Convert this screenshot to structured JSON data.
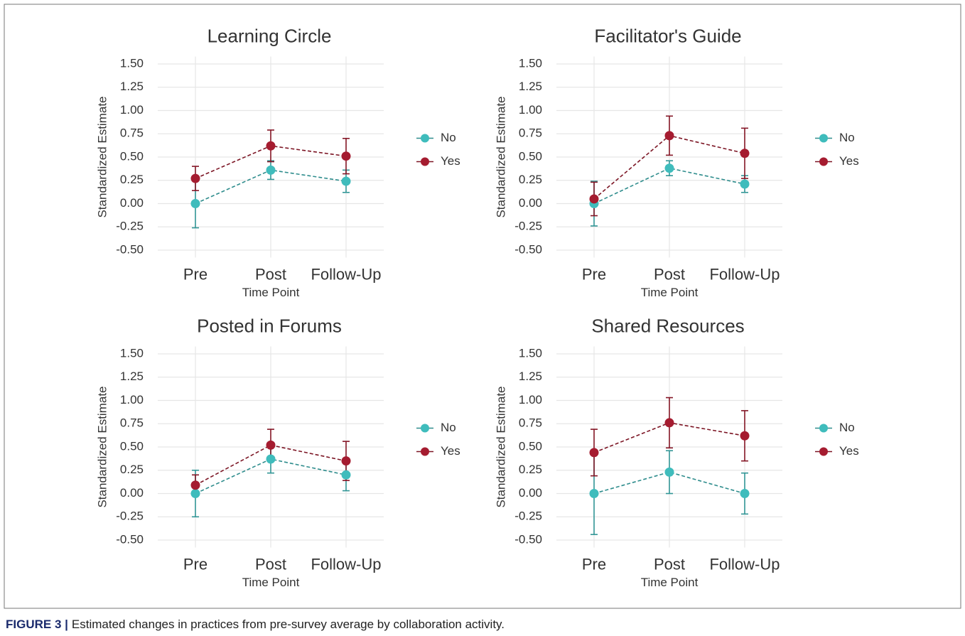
{
  "chart_data": [
    {
      "type": "line",
      "title": "Learning Circle",
      "x_label": "Time Point",
      "y_label": "Standardized Estimate",
      "categories": [
        "Pre",
        "Post",
        "Follow-Up"
      ],
      "series": [
        {
          "name": "No",
          "color": "#3fbcbc",
          "values": [
            0,
            0.36,
            0.24
          ],
          "errors": [
            0.26,
            0.1,
            0.12
          ]
        },
        {
          "name": "Yes",
          "color": "#a51c30",
          "values": [
            0.27,
            0.62,
            0.51
          ],
          "errors": [
            0.13,
            0.17,
            0.19
          ]
        }
      ],
      "ylim": [
        -0.58,
        1.58
      ],
      "yticks": [
        {
          "value": -0.5,
          "label": "-0.50"
        },
        {
          "value": -0.25,
          "label": "-0.25"
        },
        {
          "value": 0,
          "label": "0.00"
        },
        {
          "value": 0.25,
          "label": "0.25"
        },
        {
          "value": 0.5,
          "label": "0.50"
        },
        {
          "value": 0.75,
          "label": "0.75"
        },
        {
          "value": 1,
          "label": "1.00"
        },
        {
          "value": 1.25,
          "label": "1.25"
        },
        {
          "value": 1.5,
          "label": "1.50"
        }
      ],
      "grid": true,
      "legend": "right"
    },
    {
      "type": "line",
      "title": "Facilitator's Guide",
      "x_label": "Time Point",
      "y_label": "Standardized Estimate",
      "categories": [
        "Pre",
        "Post",
        "Follow-Up"
      ],
      "series": [
        {
          "name": "No",
          "color": "#3fbcbc",
          "values": [
            0,
            0.38,
            0.21
          ],
          "errors": [
            0.24,
            0.08,
            0.09
          ]
        },
        {
          "name": "Yes",
          "color": "#a51c30",
          "values": [
            0.05,
            0.73,
            0.54
          ],
          "errors": [
            0.18,
            0.21,
            0.27
          ]
        }
      ],
      "ylim": [
        -0.58,
        1.58
      ],
      "yticks": [
        {
          "value": -0.5,
          "label": "-0.50"
        },
        {
          "value": -0.25,
          "label": "-0.25"
        },
        {
          "value": 0,
          "label": "0.00"
        },
        {
          "value": 0.25,
          "label": "0.25"
        },
        {
          "value": 0.5,
          "label": "0.50"
        },
        {
          "value": 0.75,
          "label": "0.75"
        },
        {
          "value": 1,
          "label": "1.00"
        },
        {
          "value": 1.25,
          "label": "1.25"
        },
        {
          "value": 1.5,
          "label": "1.50"
        }
      ],
      "grid": true,
      "legend": "right"
    },
    {
      "type": "line",
      "title": "Posted in Forums",
      "x_label": "Time Point",
      "y_label": "Standardized Estimate",
      "categories": [
        "Pre",
        "Post",
        "Follow-Up"
      ],
      "series": [
        {
          "name": "No",
          "color": "#3fbcbc",
          "values": [
            0,
            0.37,
            0.2
          ],
          "errors": [
            0.25,
            0.15,
            0.17
          ]
        },
        {
          "name": "Yes",
          "color": "#a51c30",
          "values": [
            0.09,
            0.52,
            0.35
          ],
          "errors": [
            0.11,
            0.17,
            0.21
          ]
        }
      ],
      "ylim": [
        -0.58,
        1.58
      ],
      "yticks": [
        {
          "value": -0.5,
          "label": "-0.50"
        },
        {
          "value": -0.25,
          "label": "-0.25"
        },
        {
          "value": 0,
          "label": "0.00"
        },
        {
          "value": 0.25,
          "label": "0.25"
        },
        {
          "value": 0.5,
          "label": "0.50"
        },
        {
          "value": 0.75,
          "label": "0.75"
        },
        {
          "value": 1,
          "label": "1.00"
        },
        {
          "value": 1.25,
          "label": "1.25"
        },
        {
          "value": 1.5,
          "label": "1.50"
        }
      ],
      "grid": true,
      "legend": "right"
    },
    {
      "type": "line",
      "title": "Shared Resources",
      "x_label": "Time Point",
      "y_label": "Standardized Estimate",
      "categories": [
        "Pre",
        "Post",
        "Follow-Up"
      ],
      "series": [
        {
          "name": "No",
          "color": "#3fbcbc",
          "values": [
            0,
            0.23,
            0
          ],
          "errors": [
            0.44,
            0.23,
            0.22
          ]
        },
        {
          "name": "Yes",
          "color": "#a51c30",
          "values": [
            0.44,
            0.76,
            0.62
          ],
          "errors": [
            0.25,
            0.27,
            0.27
          ]
        }
      ],
      "ylim": [
        -0.58,
        1.58
      ],
      "yticks": [
        {
          "value": -0.5,
          "label": "-0.50"
        },
        {
          "value": -0.25,
          "label": "-0.25"
        },
        {
          "value": 0,
          "label": "0.00"
        },
        {
          "value": 0.25,
          "label": "0.25"
        },
        {
          "value": 0.5,
          "label": "0.50"
        },
        {
          "value": 0.75,
          "label": "0.75"
        },
        {
          "value": 1,
          "label": "1.00"
        },
        {
          "value": 1.25,
          "label": "1.25"
        },
        {
          "value": 1.5,
          "label": "1.50"
        }
      ],
      "grid": true,
      "legend": "right"
    }
  ],
  "caption": {
    "label": "FIGURE 3 |",
    "text": "Estimated changes in practices from pre-survey average by collaboration activity."
  }
}
